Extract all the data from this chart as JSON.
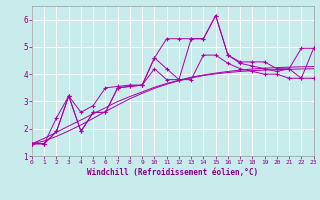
{
  "xlabel": "Windchill (Refroidissement éolien,°C)",
  "bg_color": "#c8ecec",
  "grid_color": "#ffffff",
  "line_color": "#aa00aa",
  "x_data": [
    0,
    1,
    2,
    3,
    4,
    5,
    6,
    7,
    8,
    9,
    10,
    11,
    12,
    13,
    14,
    15,
    16,
    17,
    18,
    19,
    20,
    21,
    22,
    23
  ],
  "y_main": [
    1.45,
    1.45,
    1.9,
    3.2,
    1.9,
    2.6,
    2.6,
    3.5,
    3.55,
    3.6,
    4.6,
    4.2,
    3.8,
    5.3,
    5.3,
    6.15,
    4.7,
    4.4,
    4.3,
    4.2,
    4.1,
    4.2,
    3.85,
    4.95
  ],
  "y_upper": [
    1.45,
    1.45,
    2.4,
    3.2,
    2.6,
    2.85,
    3.5,
    3.55,
    3.6,
    3.6,
    4.6,
    5.3,
    5.3,
    5.3,
    5.3,
    6.15,
    4.7,
    4.45,
    4.45,
    4.45,
    4.2,
    4.2,
    4.95,
    4.95
  ],
  "y_lower": [
    1.45,
    1.45,
    1.9,
    3.2,
    1.9,
    2.6,
    2.6,
    3.5,
    3.55,
    3.6,
    4.2,
    3.8,
    3.8,
    3.8,
    4.7,
    4.7,
    4.4,
    4.2,
    4.1,
    4.0,
    4.0,
    3.85,
    3.85,
    3.85
  ],
  "y_reg1": [
    1.45,
    1.65,
    1.87,
    2.1,
    2.32,
    2.55,
    2.77,
    3.0,
    3.18,
    3.35,
    3.52,
    3.66,
    3.78,
    3.89,
    3.97,
    4.04,
    4.1,
    4.15,
    4.19,
    4.22,
    4.24,
    4.26,
    4.27,
    4.28
  ],
  "y_reg2": [
    1.45,
    1.55,
    1.72,
    1.92,
    2.14,
    2.38,
    2.63,
    2.87,
    3.1,
    3.3,
    3.48,
    3.63,
    3.76,
    3.86,
    3.95,
    4.01,
    4.06,
    4.1,
    4.13,
    4.15,
    4.17,
    4.18,
    4.19,
    4.2
  ],
  "xlim": [
    0,
    23
  ],
  "ylim": [
    1.0,
    6.5
  ],
  "yticks": [
    1,
    2,
    3,
    4,
    5,
    6
  ],
  "xticks": [
    0,
    1,
    2,
    3,
    4,
    5,
    6,
    7,
    8,
    9,
    10,
    11,
    12,
    13,
    14,
    15,
    16,
    17,
    18,
    19,
    20,
    21,
    22,
    23
  ]
}
